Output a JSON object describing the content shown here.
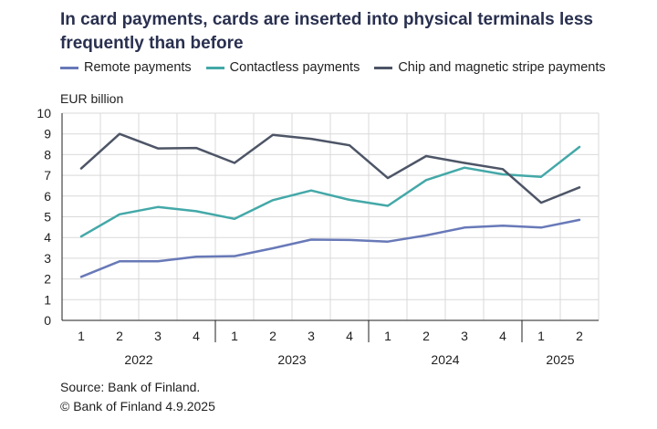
{
  "title": "In card payments, cards are inserted into physical terminals less frequently than before",
  "colors": {
    "remote": "#6879b8",
    "contactless": "#44a8a8",
    "chip": "#4d5566",
    "grid": "#d9d9d9",
    "axis": "#1f1f1f"
  },
  "chart_data": {
    "type": "line",
    "ylabel": "EUR billion",
    "ylim": [
      0,
      10
    ],
    "yticks": [
      "0",
      "1",
      "2",
      "3",
      "4",
      "5",
      "6",
      "7",
      "8",
      "9",
      "10"
    ],
    "grid": true,
    "legend_position": "top",
    "categories": [
      "1",
      "2",
      "3",
      "4",
      "1",
      "2",
      "3",
      "4",
      "1",
      "2",
      "3",
      "4",
      "1",
      "2"
    ],
    "year_groups": [
      {
        "label": "2022",
        "count": 4
      },
      {
        "label": "2023",
        "count": 4
      },
      {
        "label": "2024",
        "count": 4
      },
      {
        "label": "2025",
        "count": 2
      }
    ],
    "series": [
      {
        "name": "Remote payments",
        "color_key": "remote",
        "values": [
          2.1,
          2.85,
          2.85,
          3.07,
          3.1,
          3.48,
          3.9,
          3.88,
          3.8,
          4.1,
          4.48,
          4.57,
          4.48,
          4.85
        ]
      },
      {
        "name": "Contactless payments",
        "color_key": "contactless",
        "values": [
          4.05,
          5.12,
          5.47,
          5.27,
          4.9,
          5.8,
          6.27,
          5.82,
          5.53,
          6.77,
          7.37,
          7.05,
          6.93,
          8.37
        ]
      },
      {
        "name": "Chip and magnetic stripe payments",
        "color_key": "chip",
        "values": [
          7.33,
          9.0,
          8.3,
          8.32,
          7.6,
          8.95,
          8.76,
          8.45,
          6.87,
          7.93,
          7.6,
          7.3,
          5.68,
          6.42
        ]
      }
    ]
  },
  "footer": {
    "source": "Source: Bank of Finland.",
    "copyright": "© Bank of Finland 4.9.2025"
  }
}
